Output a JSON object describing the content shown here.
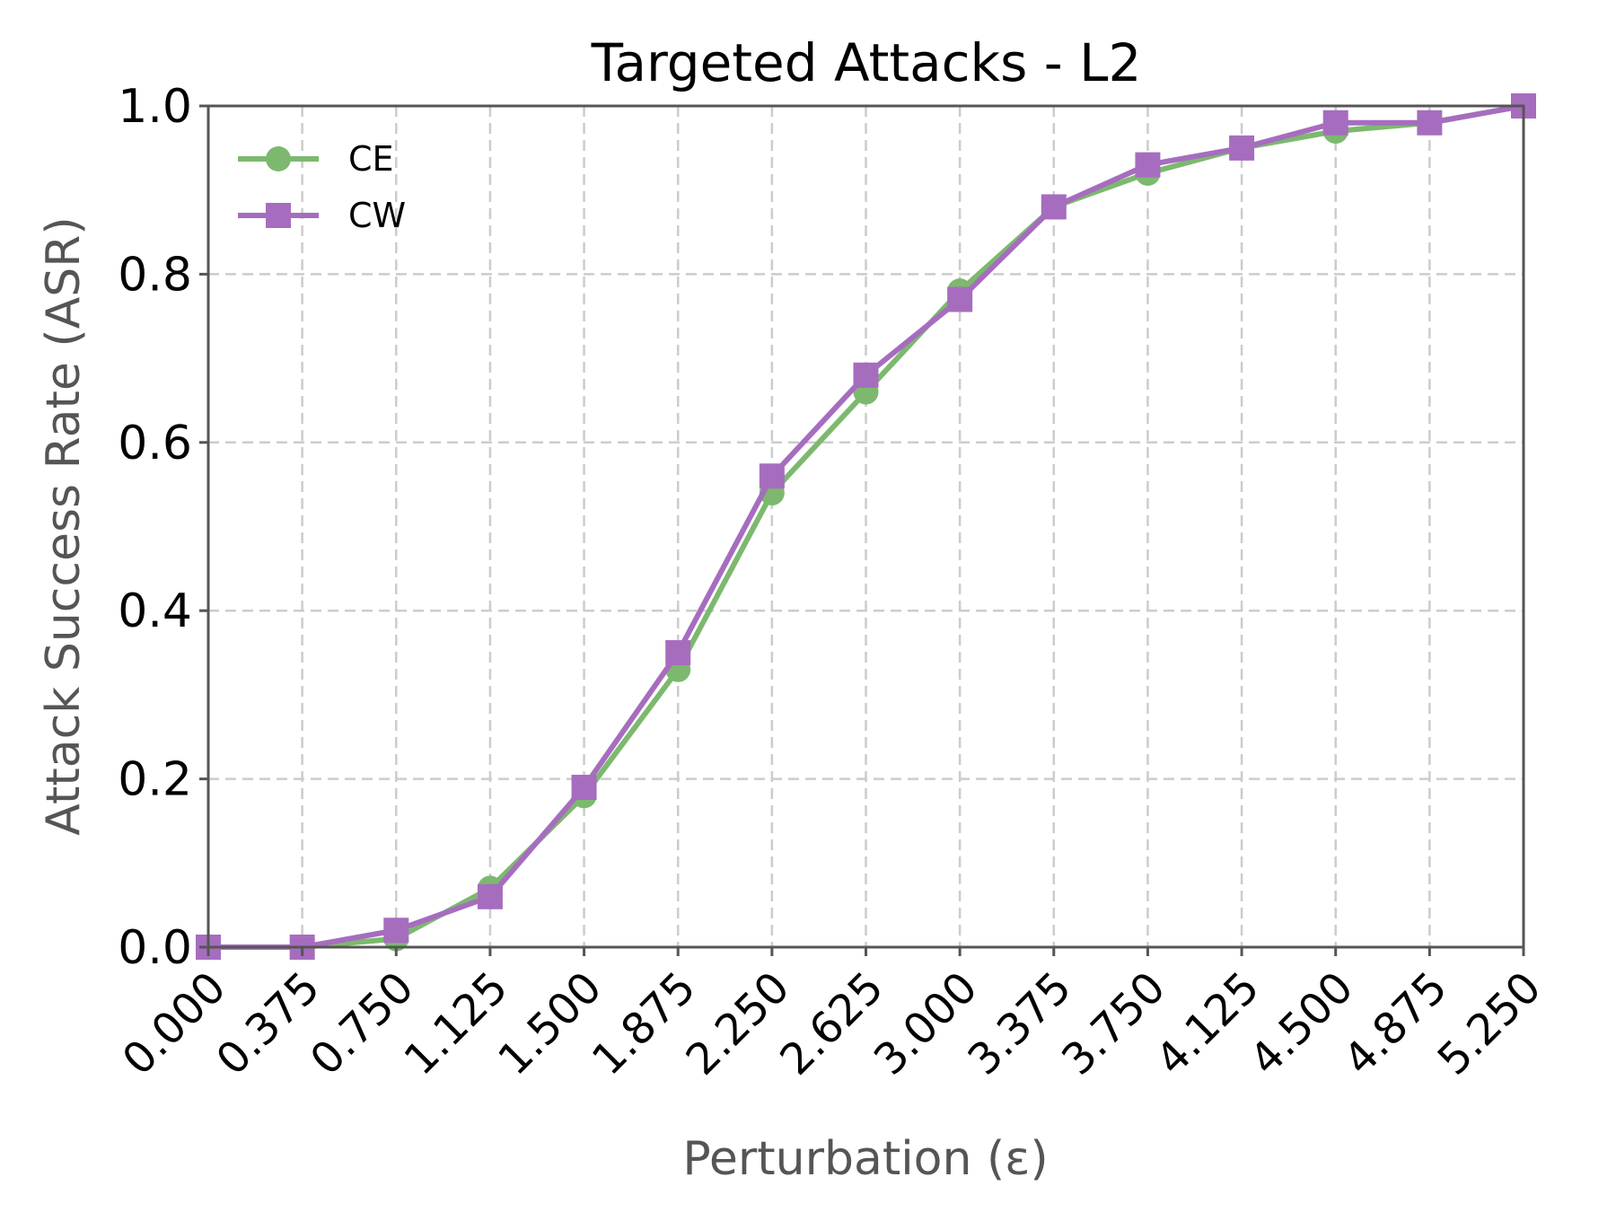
{
  "chart_data": {
    "type": "line",
    "title": "Targeted Attacks - L2",
    "xlabel": "Perturbation (ε)",
    "ylabel": "Attack Success Rate (ASR)",
    "xlim": [
      0,
      5.25
    ],
    "ylim": [
      0,
      1.0
    ],
    "x_ticks": [
      "0.000",
      "0.375",
      "0.750",
      "1.125",
      "1.500",
      "1.875",
      "2.250",
      "2.625",
      "3.000",
      "3.375",
      "3.750",
      "4.125",
      "4.500",
      "4.875",
      "5.250"
    ],
    "y_ticks": [
      "0.0",
      "0.2",
      "0.4",
      "0.6",
      "0.8",
      "1.0"
    ],
    "grid": true,
    "legend_position": "top-left",
    "x": [
      0,
      0.375,
      0.75,
      1.125,
      1.5,
      1.875,
      2.25,
      2.625,
      3.0,
      3.375,
      3.75,
      4.125,
      4.5,
      4.875,
      5.25
    ],
    "series": [
      {
        "name": "CE",
        "color": "#7cb96e",
        "marker": "circle",
        "values": [
          0.0,
          0.0,
          0.01,
          0.07,
          0.18,
          0.33,
          0.54,
          0.66,
          0.78,
          0.88,
          0.92,
          0.95,
          0.97,
          0.98,
          1.0
        ]
      },
      {
        "name": "CW",
        "color": "#a66dbf",
        "marker": "square",
        "values": [
          0.0,
          0.0,
          0.02,
          0.06,
          0.19,
          0.35,
          0.56,
          0.68,
          0.77,
          0.88,
          0.93,
          0.95,
          0.98,
          0.98,
          1.0
        ]
      }
    ]
  }
}
